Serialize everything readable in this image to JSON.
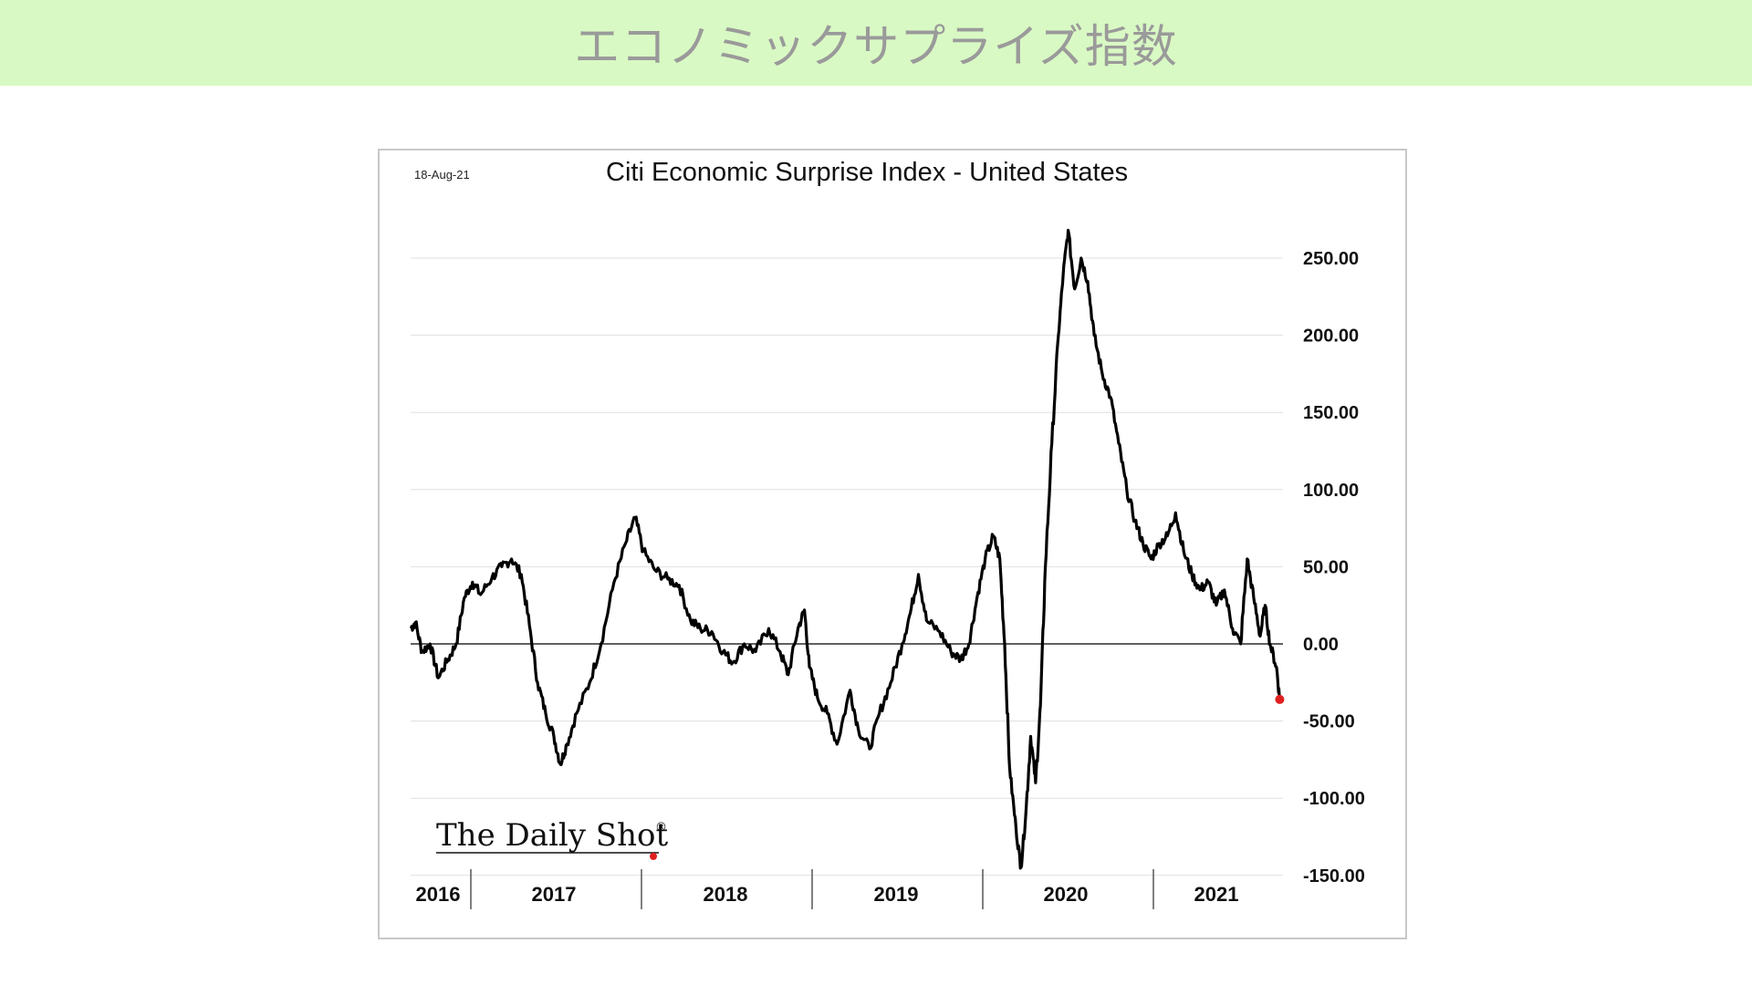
{
  "banner": {
    "title": "エコノミックサプライズ指数"
  },
  "colors": {
    "banner_bg": "#d9f9c4",
    "line": "#000000",
    "last_point": "#e02020",
    "grid": "#e0e0e0"
  },
  "chart_data": {
    "type": "line",
    "date_stamp": "18-Aug-21",
    "title": "Citi Economic Surprise Index - United States",
    "xlabel": "",
    "ylabel": "",
    "y_ticks": [
      "250.00",
      "200.00",
      "150.00",
      "100.00",
      "50.00",
      "0.00",
      "-50.00",
      "-100.00",
      "-150.00"
    ],
    "ylim": [
      -150,
      250
    ],
    "x_ticks": [
      "2016",
      "2017",
      "2018",
      "2019",
      "2020",
      "2021"
    ],
    "xlim": [
      2016.3,
      2021.66
    ],
    "grid": true,
    "series": [
      {
        "values": [
          [
            2016.3,
            10
          ],
          [
            2016.33,
            14
          ],
          [
            2016.37,
            -5
          ],
          [
            2016.42,
            0
          ],
          [
            2016.47,
            -22
          ],
          [
            2016.53,
            -10
          ],
          [
            2016.58,
            0
          ],
          [
            2016.63,
            30
          ],
          [
            2016.68,
            40
          ],
          [
            2016.73,
            32
          ],
          [
            2016.8,
            43
          ],
          [
            2016.86,
            50
          ],
          [
            2016.92,
            55
          ],
          [
            2016.98,
            45
          ],
          [
            2017.03,
            12
          ],
          [
            2017.08,
            -25
          ],
          [
            2017.13,
            -45
          ],
          [
            2017.18,
            -60
          ],
          [
            2017.22,
            -78
          ],
          [
            2017.26,
            -65
          ],
          [
            2017.32,
            -45
          ],
          [
            2017.4,
            -25
          ],
          [
            2017.47,
            0
          ],
          [
            2017.55,
            40
          ],
          [
            2017.62,
            65
          ],
          [
            2017.68,
            82
          ],
          [
            2017.73,
            60
          ],
          [
            2017.8,
            48
          ],
          [
            2017.88,
            42
          ],
          [
            2017.95,
            38
          ],
          [
            2018.02,
            15
          ],
          [
            2018.08,
            10
          ],
          [
            2018.15,
            8
          ],
          [
            2018.22,
            -5
          ],
          [
            2018.28,
            -12
          ],
          [
            2018.35,
            0
          ],
          [
            2018.42,
            -5
          ],
          [
            2018.5,
            10
          ],
          [
            2018.57,
            -5
          ],
          [
            2018.62,
            -20
          ],
          [
            2018.68,
            10
          ],
          [
            2018.72,
            22
          ],
          [
            2018.75,
            -15
          ],
          [
            2018.8,
            -35
          ],
          [
            2018.86,
            -45
          ],
          [
            2018.92,
            -65
          ],
          [
            2019.0,
            -30
          ],
          [
            2019.05,
            -55
          ],
          [
            2019.12,
            -68
          ],
          [
            2019.18,
            -45
          ],
          [
            2019.25,
            -25
          ],
          [
            2019.32,
            0
          ],
          [
            2019.37,
            20
          ],
          [
            2019.42,
            45
          ],
          [
            2019.47,
            15
          ],
          [
            2019.55,
            8
          ],
          [
            2019.62,
            -5
          ],
          [
            2019.68,
            -10
          ],
          [
            2019.73,
            0
          ],
          [
            2019.78,
            30
          ],
          [
            2019.83,
            55
          ],
          [
            2019.88,
            70
          ],
          [
            2019.92,
            55
          ],
          [
            2019.95,
            0
          ],
          [
            2019.98,
            -80
          ],
          [
            2020.02,
            -120
          ],
          [
            2020.05,
            -145
          ],
          [
            2020.08,
            -110
          ],
          [
            2020.11,
            -60
          ],
          [
            2020.14,
            -90
          ],
          [
            2020.17,
            -40
          ],
          [
            2020.2,
            50
          ],
          [
            2020.24,
            130
          ],
          [
            2020.28,
            200
          ],
          [
            2020.31,
            240
          ],
          [
            2020.34,
            268
          ],
          [
            2020.38,
            230
          ],
          [
            2020.42,
            250
          ],
          [
            2020.46,
            235
          ],
          [
            2020.5,
            200
          ],
          [
            2020.55,
            175
          ],
          [
            2020.6,
            160
          ],
          [
            2020.65,
            130
          ],
          [
            2020.7,
            100
          ],
          [
            2020.75,
            80
          ],
          [
            2020.8,
            65
          ],
          [
            2020.85,
            55
          ],
          [
            2020.9,
            65
          ],
          [
            2020.95,
            70
          ],
          [
            2021.0,
            85
          ],
          [
            2021.05,
            60
          ],
          [
            2021.1,
            45
          ],
          [
            2021.15,
            35
          ],
          [
            2021.2,
            40
          ],
          [
            2021.25,
            25
          ],
          [
            2021.3,
            35
          ],
          [
            2021.35,
            10
          ],
          [
            2021.4,
            0
          ],
          [
            2021.44,
            55
          ],
          [
            2021.48,
            30
          ],
          [
            2021.52,
            5
          ],
          [
            2021.55,
            25
          ],
          [
            2021.58,
            0
          ],
          [
            2021.62,
            -15
          ],
          [
            2021.64,
            -36
          ]
        ]
      }
    ]
  },
  "brand": {
    "text": "The Daily Shot",
    "mark": "®"
  }
}
